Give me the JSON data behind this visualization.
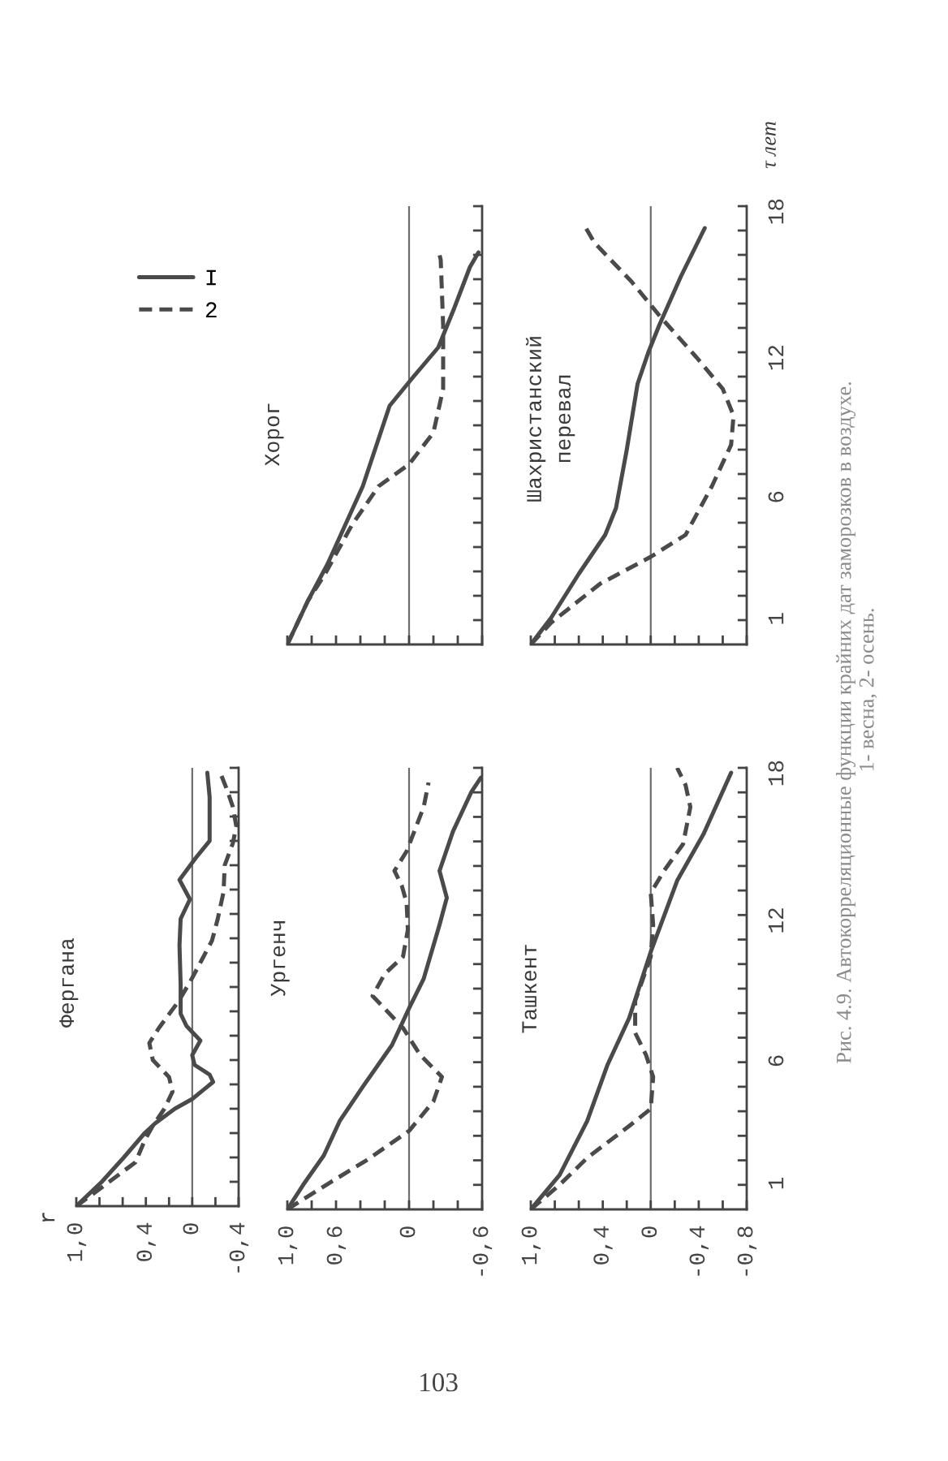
{
  "chart_data": [
    {
      "type": "line",
      "title": "Фергана",
      "legend": "top",
      "tick_labels": "x",
      "annotations": [
        "r"
      ],
      "xlim": [
        1.0,
        -0.4
      ],
      "xticks": [
        {
          "value": 1.0,
          "label": "1,0"
        },
        {
          "value": 0.8,
          "label": null
        },
        {
          "value": 0.6,
          "label": null
        },
        {
          "value": 0.4,
          "label": "0,4"
        },
        {
          "value": 0.2,
          "label": null
        },
        0,
        {
          "value": -0.2,
          "label": null
        },
        {
          "value": -0.4,
          "label": "-0,4"
        }
      ],
      "ylim": [
        0,
        18
      ],
      "yticks": [
        1,
        {
          "value": 2,
          "label": null
        },
        {
          "value": 3,
          "label": null
        },
        {
          "value": 4,
          "label": null
        },
        {
          "value": 5,
          "label": null
        },
        6,
        {
          "value": 7,
          "label": null
        },
        {
          "value": 8,
          "label": null
        },
        {
          "value": 9,
          "label": null
        },
        {
          "value": 10,
          "label": null
        },
        {
          "value": 11,
          "label": null
        },
        12,
        {
          "value": 13,
          "label": null
        },
        {
          "value": 14,
          "label": null
        },
        {
          "value": 15,
          "label": null
        },
        {
          "value": 16,
          "label": null
        },
        {
          "value": 17,
          "label": null
        },
        18
      ],
      "ref_lines": [
        {
          "axis": "x",
          "value": 0,
          "color": "#6e6e6e"
        }
      ],
      "series": [
        {
          "name": "I",
          "color": "#4a4a4a",
          "line_style": "solid",
          "x": [
            1.0,
            0.78,
            0.59,
            0.41,
            0.32,
            0.15,
            0,
            -0.18,
            -0.15,
            -0.02,
            0,
            -0.07,
            0.05,
            0.1,
            0.1,
            0.11,
            0.1,
            0.02,
            0.11,
            -0.03,
            -0.15,
            -0.15,
            -0.13
          ],
          "values": [
            0,
            1,
            2,
            3,
            3.4,
            4,
            4.4,
            5.1,
            5.4,
            5.8,
            6.2,
            6.8,
            7.4,
            7.9,
            9.1,
            10.7,
            11.8,
            12.6,
            13.4,
            14.3,
            15,
            16.8,
            17.8
          ]
        },
        {
          "name": "2",
          "color": "#4a4a4a",
          "line_style": "dashed",
          "x": [
            1.0,
            0.8,
            0.49,
            0.41,
            0.34,
            0.24,
            0.17,
            0.2,
            0.34,
            0.37,
            0.29,
            0.12,
            0.02,
            -0.07,
            -0.17,
            -0.22,
            -0.27,
            -0.28,
            -0.35,
            -0.38,
            -0.35,
            -0.3,
            -0.25
          ],
          "values": [
            0,
            0.7,
            1.8,
            2.7,
            3.3,
            4,
            4.7,
            5.3,
            6,
            6.7,
            7.3,
            8.4,
            9.2,
            10,
            10.9,
            11.8,
            12.9,
            14,
            14.9,
            15.6,
            16.4,
            17.1,
            17.7
          ]
        }
      ]
    },
    {
      "type": "line",
      "title": "Ургенч",
      "tick_labels": "x",
      "xlim": [
        1.0,
        -0.6
      ],
      "xticks": [
        {
          "value": 1.0,
          "label": "1,0"
        },
        {
          "value": 0.8,
          "label": null
        },
        {
          "value": 0.6,
          "label": "0,6"
        },
        {
          "value": 0.4,
          "label": null
        },
        {
          "value": 0.2,
          "label": null
        },
        0,
        {
          "value": -0.2,
          "label": null
        },
        {
          "value": -0.4,
          "label": null
        },
        {
          "value": -0.6,
          "label": "-0,6"
        }
      ],
      "ylim": [
        0,
        18
      ],
      "yticks": [
        1,
        {
          "value": 2,
          "label": null
        },
        {
          "value": 3,
          "label": null
        },
        {
          "value": 4,
          "label": null
        },
        {
          "value": 5,
          "label": null
        },
        6,
        {
          "value": 7,
          "label": null
        },
        {
          "value": 8,
          "label": null
        },
        {
          "value": 9,
          "label": null
        },
        {
          "value": 10,
          "label": null
        },
        {
          "value": 11,
          "label": null
        },
        12,
        {
          "value": 13,
          "label": null
        },
        {
          "value": 14,
          "label": null
        },
        {
          "value": 15,
          "label": null
        },
        {
          "value": 16,
          "label": null
        },
        {
          "value": 17,
          "label": null
        },
        18
      ],
      "ref_lines": [
        {
          "axis": "x",
          "value": 0,
          "color": "#6e6e6e"
        }
      ],
      "series": [
        {
          "color": "#4a4a4a",
          "line_style": "solid",
          "x": [
            1.0,
            0.87,
            0.7,
            0.57,
            0.38,
            0.14,
            0,
            -0.12,
            -0.25,
            -0.31,
            -0.25,
            -0.36,
            -0.51,
            -0.59
          ],
          "values": [
            0,
            1,
            2.2,
            3.6,
            5,
            6.7,
            8.2,
            9.4,
            11.6,
            12.7,
            13.8,
            15.4,
            17,
            17.6
          ]
        },
        {
          "color": "#4a4a4a",
          "line_style": "dashed",
          "x": [
            1.0,
            0.68,
            0.35,
            0,
            -0.2,
            -0.27,
            -0.09,
            0.05,
            0.3,
            0.2,
            0.05,
            0.01,
            0.02,
            0.06,
            0.12,
            0.02,
            -0.05,
            -0.12,
            -0.16
          ],
          "values": [
            0,
            1,
            2,
            3.2,
            4.4,
            5.4,
            6.3,
            7.4,
            8.7,
            9.6,
            10.3,
            11.4,
            12.5,
            13.2,
            13.8,
            14.6,
            15.5,
            16.4,
            17.4
          ]
        }
      ]
    },
    {
      "type": "line",
      "title": "Хорог",
      "tick_labels": false,
      "xlim": [
        1.0,
        -0.6
      ],
      "xticks": [
        1.0,
        {
          "value": 0.8,
          "label": null
        },
        0.6,
        {
          "value": 0.4,
          "label": null
        },
        {
          "value": 0.2,
          "label": null
        },
        0,
        {
          "value": -0.2,
          "label": null
        },
        {
          "value": -0.4,
          "label": null
        },
        -0.6
      ],
      "ylim": [
        0,
        18
      ],
      "yticks": [
        1,
        {
          "value": 2,
          "label": null
        },
        {
          "value": 3,
          "label": null
        },
        {
          "value": 4,
          "label": null
        },
        {
          "value": 5,
          "label": null
        },
        6,
        {
          "value": 7,
          "label": null
        },
        {
          "value": 8,
          "label": null
        },
        {
          "value": 9,
          "label": null
        },
        {
          "value": 10,
          "label": null
        },
        {
          "value": 11,
          "label": null
        },
        12,
        {
          "value": 13,
          "label": null
        },
        {
          "value": 14,
          "label": null
        },
        {
          "value": 15,
          "label": null
        },
        {
          "value": 16,
          "label": null
        },
        {
          "value": 17,
          "label": null
        },
        18
      ],
      "ref_lines": [
        {
          "axis": "x",
          "value": 0,
          "color": "#6e6e6e"
        }
      ],
      "series": [
        {
          "color": "#4a4a4a",
          "line_style": "solid",
          "x": [
            1.0,
            0.83,
            0.67,
            0.38,
            0.16,
            -0.02,
            -0.24,
            -0.37,
            -0.5,
            -0.57
          ],
          "values": [
            0,
            1.8,
            3.3,
            6.5,
            9.8,
            10.9,
            12.2,
            13.8,
            15.5,
            16.1
          ]
        },
        {
          "color": "#4a4a4a",
          "line_style": "dashed",
          "x": [
            1.0,
            0.83,
            0.69,
            0.47,
            0.25,
            0,
            -0.2,
            -0.28,
            -0.28,
            -0.26,
            -0.24
          ],
          "values": [
            0,
            1.8,
            2.9,
            4.9,
            6.5,
            7.4,
            8.7,
            10.5,
            13.1,
            15.8,
            16.2
          ]
        }
      ]
    },
    {
      "type": "line",
      "title": "Ташкент",
      "xlim": [
        1.0,
        -0.8
      ],
      "xticks": [
        {
          "value": 1.0,
          "label": "1,0"
        },
        {
          "value": 0.8,
          "label": null
        },
        {
          "value": 0.6,
          "label": null
        },
        {
          "value": 0.4,
          "label": "0,4"
        },
        {
          "value": 0.2,
          "label": null
        },
        0,
        {
          "value": -0.2,
          "label": null
        },
        {
          "value": -0.4,
          "label": "-0,4"
        },
        {
          "value": -0.6,
          "label": null
        },
        {
          "value": -0.8,
          "label": "-0,8"
        }
      ],
      "ylim": [
        0,
        18
      ],
      "yticks": [
        1,
        {
          "value": 2,
          "label": null
        },
        {
          "value": 3,
          "label": null
        },
        {
          "value": 4,
          "label": null
        },
        {
          "value": 5,
          "label": null
        },
        6,
        {
          "value": 7,
          "label": null
        },
        {
          "value": 8,
          "label": null
        },
        {
          "value": 9,
          "label": null
        },
        {
          "value": 10,
          "label": null
        },
        {
          "value": 11,
          "label": null
        },
        12,
        {
          "value": 13,
          "label": null
        },
        {
          "value": 14,
          "label": null
        },
        {
          "value": 15,
          "label": null
        },
        {
          "value": 16,
          "label": null
        },
        {
          "value": 17,
          "label": null
        },
        18
      ],
      "ref_lines": [
        {
          "axis": "x",
          "value": 0,
          "color": "#6e6e6e"
        }
      ],
      "series": [
        {
          "color": "#4a4a4a",
          "line_style": "solid",
          "x": [
            1.0,
            0.76,
            0.53,
            0.36,
            0.18,
            0,
            -0.22,
            -0.44,
            -0.67
          ],
          "values": [
            0,
            1.4,
            3.6,
            5.9,
            7.8,
            10.5,
            13.4,
            15.3,
            17.8
          ]
        },
        {
          "color": "#4a4a4a",
          "line_style": "dashed",
          "x": [
            1.0,
            0.76,
            0.53,
            0.18,
            0,
            -0.02,
            0.04,
            0.13,
            0.13,
            0,
            -0.02,
            0,
            -0.11,
            -0.27,
            -0.33,
            -0.29,
            -0.22
          ],
          "values": [
            0,
            1,
            2.1,
            3.4,
            4.1,
            5.4,
            6.3,
            7.2,
            8.5,
            10.3,
            11.6,
            12.9,
            13.8,
            14.9,
            16.4,
            17.3,
            18
          ]
        }
      ]
    },
    {
      "type": "line",
      "title": "Шахристанский\nперевал",
      "ylabel": "τ лет",
      "tick_labels": "y",
      "xlim": [
        1.0,
        -0.8
      ],
      "xticks": [
        1.0,
        {
          "value": 0.8,
          "label": null
        },
        {
          "value": 0.6,
          "label": null
        },
        0.4,
        {
          "value": 0.2,
          "label": null
        },
        0,
        {
          "value": -0.2,
          "label": null
        },
        -0.4,
        {
          "value": -0.6,
          "label": null
        },
        -0.8
      ],
      "ylim": [
        0,
        18
      ],
      "yticks": [
        1,
        {
          "value": 2,
          "label": null
        },
        {
          "value": 3,
          "label": null
        },
        {
          "value": 4,
          "label": null
        },
        {
          "value": 5,
          "label": null
        },
        6,
        {
          "value": 7,
          "label": null
        },
        {
          "value": 8,
          "label": null
        },
        {
          "value": 9,
          "label": null
        },
        {
          "value": 10,
          "label": null
        },
        {
          "value": 11,
          "label": null
        },
        12,
        {
          "value": 13,
          "label": null
        },
        {
          "value": 14,
          "label": null
        },
        {
          "value": 15,
          "label": null
        },
        {
          "value": 16,
          "label": null
        },
        {
          "value": 17,
          "label": null
        },
        18
      ],
      "ref_lines": [
        {
          "axis": "x",
          "value": 0,
          "color": "#6e6e6e"
        }
      ],
      "annotations": [
        "Рис. 4.9. Автокорреляционные функции крайних дат заморозков в воздухе.",
        "1- весна, 2- осень.",
        "103"
      ],
      "series": [
        {
          "color": "#4a4a4a",
          "line_style": "solid",
          "x": [
            1.0,
            0.83,
            0.6,
            0.38,
            0.29,
            0.2,
            0.11,
            0.02,
            -0.07,
            -0.25,
            -0.45
          ],
          "values": [
            0,
            1.1,
            2.9,
            4.5,
            5.6,
            8,
            10.7,
            12,
            13.1,
            15.1,
            17.1
          ]
        },
        {
          "color": "#4a4a4a",
          "line_style": "dashed",
          "x": [
            1.0,
            0.83,
            0.42,
            0,
            -0.29,
            -0.51,
            -0.67,
            -0.69,
            -0.6,
            -0.38,
            -0.09,
            0.16,
            0.47,
            0.54
          ],
          "values": [
            0,
            0.9,
            2.5,
            3.6,
            4.5,
            6.5,
            8.2,
            9.4,
            10.5,
            11.8,
            13.4,
            14.9,
            16.5,
            17.1
          ]
        }
      ]
    }
  ]
}
